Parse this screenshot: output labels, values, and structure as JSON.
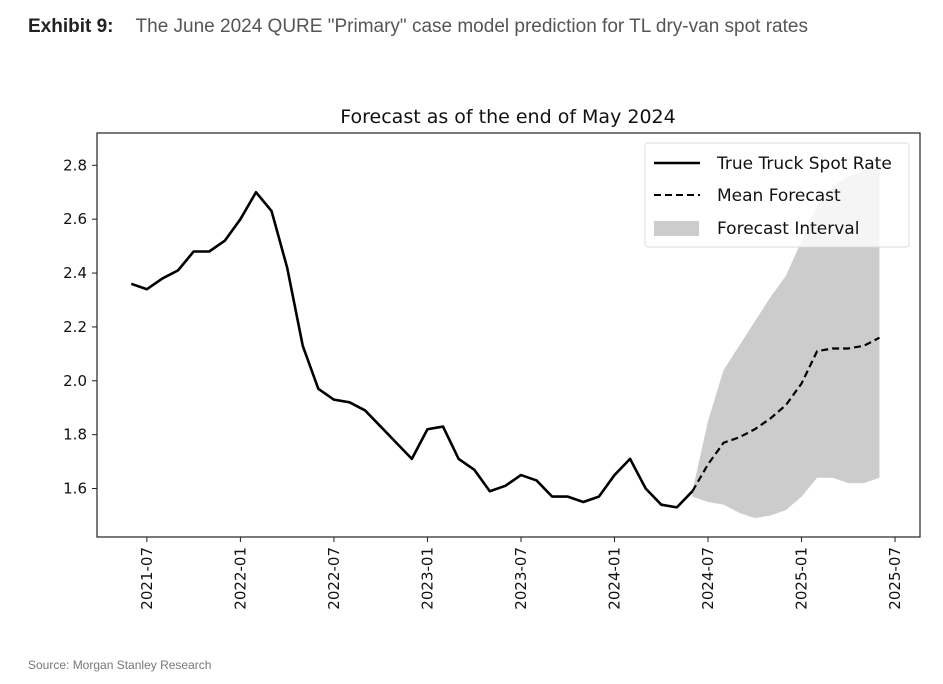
{
  "header": {
    "exhibit_label": "Exhibit 9:",
    "caption": "The June 2024 QURE \"Primary\" case model prediction for TL dry-van spot rates"
  },
  "source": "Source: Morgan Stanley Research",
  "chart_data": {
    "type": "line",
    "title": "Forecast as of the end of May 2024",
    "xlabel": "",
    "ylabel": "",
    "ylim": [
      1.42,
      2.92
    ],
    "xlim": [
      "2021-03",
      "2025-08"
    ],
    "yticks": [
      "1.6",
      "1.8",
      "2.0",
      "2.2",
      "2.4",
      "2.6",
      "2.8"
    ],
    "xticks": [
      "2021-07",
      "2022-01",
      "2022-07",
      "2023-01",
      "2023-07",
      "2024-01",
      "2024-07",
      "2025-01",
      "2025-07"
    ],
    "grid": false,
    "legend_position": "top-right",
    "series": [
      {
        "name": "True Truck Spot Rate",
        "style": "solid",
        "color": "#000000",
        "x": [
          "2021-06",
          "2021-07",
          "2021-08",
          "2021-09",
          "2021-10",
          "2021-11",
          "2021-12",
          "2022-01",
          "2022-02",
          "2022-03",
          "2022-04",
          "2022-05",
          "2022-06",
          "2022-07",
          "2022-08",
          "2022-09",
          "2022-10",
          "2022-11",
          "2022-12",
          "2023-01",
          "2023-02",
          "2023-03",
          "2023-04",
          "2023-05",
          "2023-06",
          "2023-07",
          "2023-08",
          "2023-09",
          "2023-10",
          "2023-11",
          "2023-12",
          "2024-01",
          "2024-02",
          "2024-03",
          "2024-04",
          "2024-05",
          "2024-06"
        ],
        "y": [
          2.36,
          2.34,
          2.38,
          2.41,
          2.48,
          2.48,
          2.52,
          2.6,
          2.7,
          2.63,
          2.42,
          2.13,
          1.97,
          1.93,
          1.92,
          1.89,
          1.83,
          1.77,
          1.71,
          1.82,
          1.83,
          1.71,
          1.67,
          1.59,
          1.61,
          1.65,
          1.63,
          1.57,
          1.57,
          1.55,
          1.57,
          1.65,
          1.71,
          1.6,
          1.54,
          1.53,
          1.59
        ]
      },
      {
        "name": "Mean Forecast",
        "style": "dashed",
        "color": "#000000",
        "x": [
          "2024-06",
          "2024-07",
          "2024-08",
          "2024-09",
          "2024-10",
          "2024-11",
          "2024-12",
          "2025-01",
          "2025-02",
          "2025-03",
          "2025-04",
          "2025-05",
          "2025-06"
        ],
        "y": [
          1.59,
          1.69,
          1.77,
          1.79,
          1.82,
          1.86,
          1.91,
          1.99,
          2.11,
          2.12,
          2.12,
          2.13,
          2.16
        ]
      }
    ],
    "interval": {
      "name": "Forecast Interval",
      "color": "#cccccc",
      "x": [
        "2024-06",
        "2024-07",
        "2024-08",
        "2024-09",
        "2024-10",
        "2024-11",
        "2024-12",
        "2025-01",
        "2025-02",
        "2025-03",
        "2025-04",
        "2025-05",
        "2025-06"
      ],
      "upper": [
        1.59,
        1.85,
        2.04,
        2.13,
        2.22,
        2.31,
        2.39,
        2.52,
        2.65,
        2.72,
        2.76,
        2.78,
        2.8
      ],
      "lower": [
        1.57,
        1.55,
        1.54,
        1.51,
        1.49,
        1.5,
        1.52,
        1.57,
        1.64,
        1.64,
        1.62,
        1.62,
        1.64
      ]
    }
  }
}
